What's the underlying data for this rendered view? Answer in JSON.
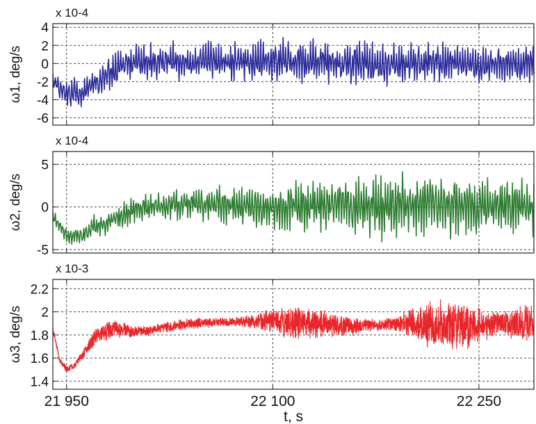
{
  "x_axis": {
    "label": "t, s",
    "ticks": [
      {
        "value": 21950,
        "label": "21 950"
      },
      {
        "value": 22100,
        "label": "22 100"
      },
      {
        "value": 22250,
        "label": "22 250"
      }
    ]
  },
  "chart_data": [
    {
      "type": "line",
      "panel": 1,
      "ylabel": "ω1, deg/s",
      "scale_label": "x 10-4",
      "ylim": [
        -6.8,
        4.4
      ],
      "yticks": [
        4,
        2,
        0,
        -2,
        -4,
        -6
      ],
      "xlim": [
        21940,
        22290
      ],
      "grid": true,
      "color": "#2b2b9a",
      "style": "noisy",
      "series": [
        {
          "x": [
            21940,
            21950,
            21960,
            21970,
            21980,
            21990,
            22000,
            22020,
            22040,
            22060,
            22080,
            22100,
            22120,
            22140,
            22160,
            22180,
            22200,
            22220,
            22240,
            22260,
            22280,
            22290
          ],
          "trend": [
            -2.0,
            -3.3,
            -3.2,
            -2.4,
            -1.2,
            -0.3,
            0.0,
            0.2,
            0.1,
            0.2,
            0.2,
            0.2,
            0.2,
            0.1,
            0.0,
            -0.1,
            0.0,
            0.2,
            0.0,
            -0.1,
            0.0,
            0.0
          ],
          "amplitude": [
            1.0,
            1.8,
            1.8,
            1.8,
            2.0,
            2.2,
            2.2,
            2.2,
            2.3,
            2.4,
            2.6,
            2.8,
            2.8,
            2.6,
            2.6,
            2.6,
            2.5,
            2.6,
            2.7,
            2.6,
            2.6,
            2.5
          ]
        }
      ]
    },
    {
      "type": "line",
      "panel": 2,
      "ylabel": "ω2, deg/s",
      "scale_label": "x 10-4",
      "ylim": [
        -5.4,
        6.5
      ],
      "yticks": [
        5,
        0,
        -5
      ],
      "xlim": [
        21940,
        22290
      ],
      "grid": true,
      "color": "#2e7d32",
      "style": "noisy",
      "series": [
        {
          "x": [
            21940,
            21950,
            21960,
            21970,
            21980,
            21990,
            22000,
            22020,
            22040,
            22060,
            22080,
            22100,
            22120,
            22140,
            22160,
            22180,
            22200,
            22220,
            22240,
            22260,
            22280,
            22290
          ],
          "trend": [
            -1.0,
            -3.5,
            -3.5,
            -2.4,
            -1.8,
            -1.0,
            -0.5,
            0.2,
            0.4,
            0.3,
            0.0,
            0.0,
            0.2,
            0.3,
            0.2,
            0.2,
            0.3,
            0.2,
            0.1,
            0.0,
            0.0,
            0.0
          ],
          "amplitude": [
            1.0,
            1.2,
            1.4,
            1.5,
            1.6,
            1.7,
            1.8,
            1.8,
            2.0,
            2.3,
            2.7,
            3.0,
            3.3,
            3.7,
            4.0,
            4.3,
            4.5,
            4.5,
            4.2,
            4.0,
            3.8,
            3.5
          ]
        }
      ]
    },
    {
      "type": "line",
      "panel": 3,
      "ylabel": "ω3, deg/s",
      "scale_label": "x 10-3",
      "ylim": [
        1.33,
        2.28
      ],
      "yticks": [
        2.2,
        2.0,
        1.8,
        1.6,
        1.4
      ],
      "xlim": [
        21940,
        22290
      ],
      "grid": true,
      "color": "#e8262b",
      "style": "dense",
      "series": [
        {
          "x": [
            21940,
            21945,
            21950,
            21955,
            21960,
            21965,
            21970,
            21975,
            21980,
            21990,
            22000,
            22010,
            22020,
            22030,
            22040,
            22050,
            22060,
            22070,
            22080,
            22090,
            22100,
            22110,
            22120,
            22130,
            22140,
            22150,
            22160,
            22170,
            22180,
            22190,
            22200,
            22210,
            22220,
            22230,
            22240,
            22250,
            22260,
            22270,
            22280,
            22290
          ],
          "trend": [
            1.85,
            1.58,
            1.5,
            1.53,
            1.6,
            1.68,
            1.76,
            1.82,
            1.84,
            1.85,
            1.83,
            1.84,
            1.86,
            1.88,
            1.9,
            1.9,
            1.91,
            1.91,
            1.92,
            1.92,
            1.92,
            1.91,
            1.91,
            1.9,
            1.89,
            1.88,
            1.88,
            1.88,
            1.89,
            1.9,
            1.9,
            1.9,
            1.89,
            1.88,
            1.88,
            1.88,
            1.89,
            1.9,
            1.9,
            1.9
          ],
          "amplitude": [
            0.03,
            0.03,
            0.03,
            0.03,
            0.04,
            0.05,
            0.08,
            0.09,
            0.09,
            0.08,
            0.05,
            0.05,
            0.05,
            0.05,
            0.05,
            0.05,
            0.04,
            0.04,
            0.06,
            0.08,
            0.12,
            0.14,
            0.16,
            0.15,
            0.13,
            0.1,
            0.08,
            0.06,
            0.05,
            0.08,
            0.14,
            0.2,
            0.25,
            0.26,
            0.22,
            0.16,
            0.12,
            0.12,
            0.16,
            0.18
          ]
        }
      ]
    }
  ]
}
